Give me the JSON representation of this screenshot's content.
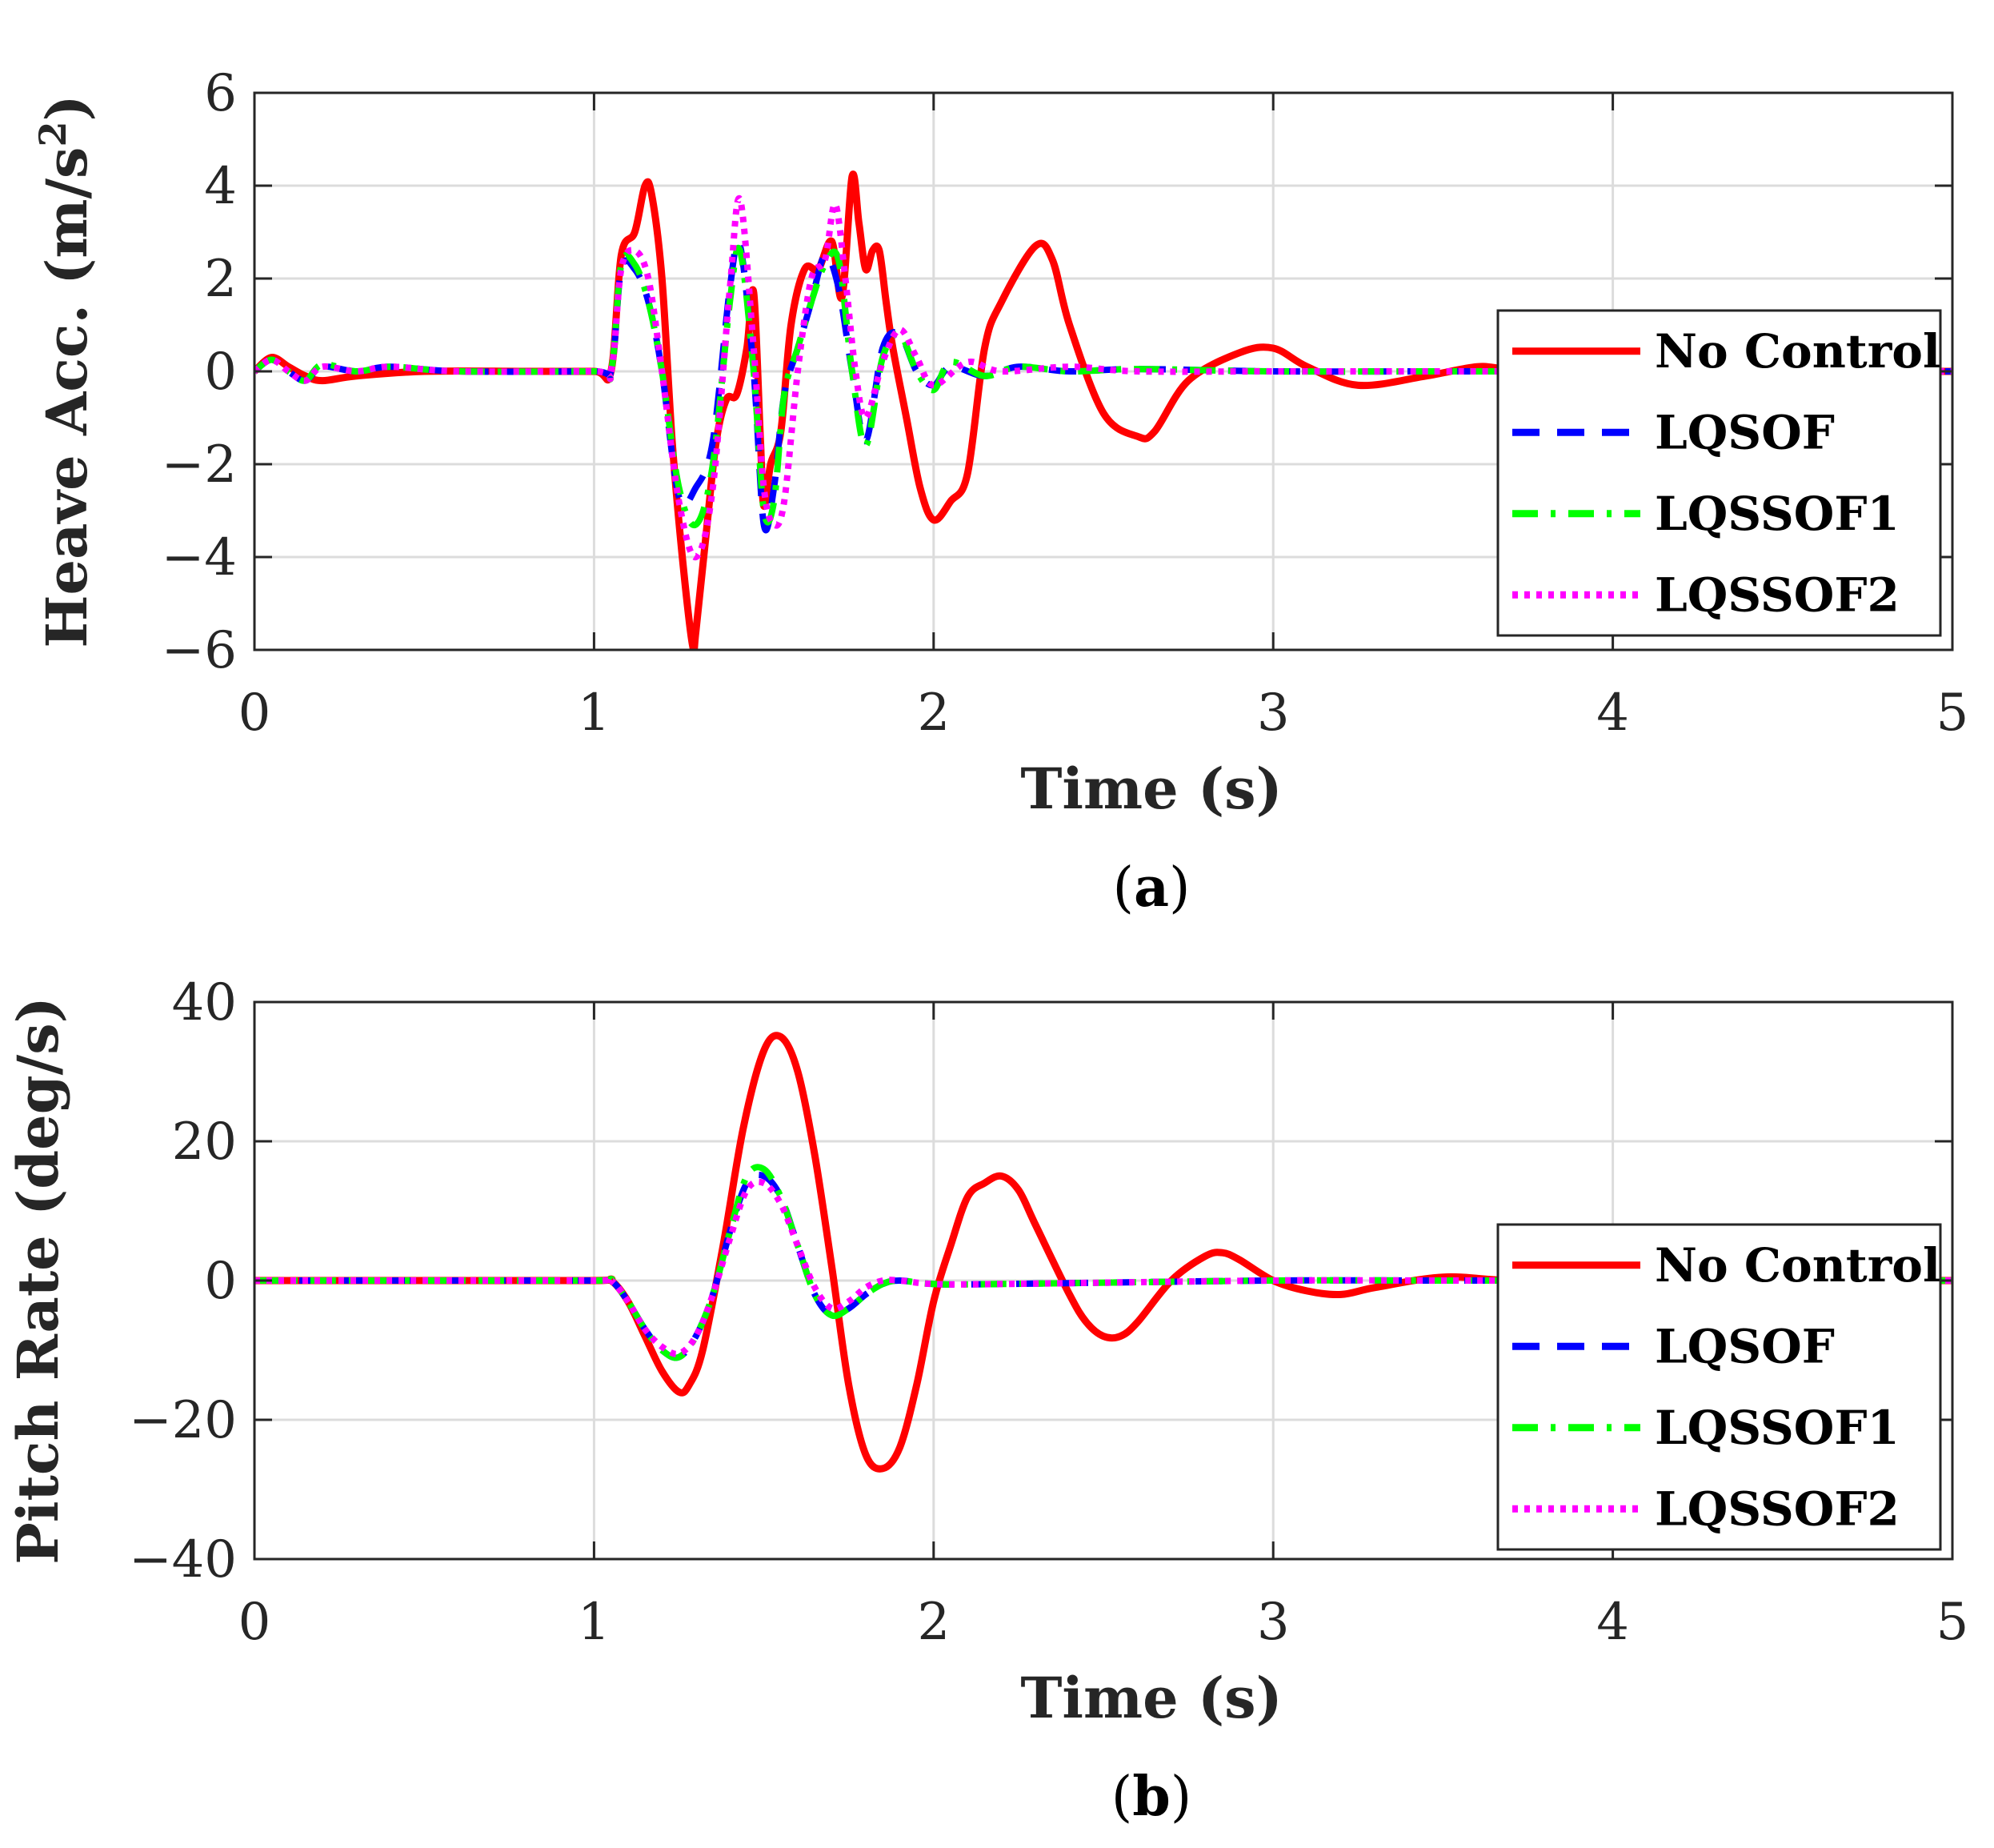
{
  "chart_data": [
    {
      "type": "line",
      "caption": {
        "open": "(",
        "letter": "a",
        "close": ")"
      },
      "xlabel": "Time (s)",
      "ylabel": "Heave Acc. (m/s",
      "ylabel_sup": "2",
      "ylabel_close": ")",
      "xlim": [
        0,
        5
      ],
      "ylim": [
        -6,
        6
      ],
      "xticks": [
        0,
        1,
        2,
        3,
        4,
        5
      ],
      "xtick_labels": [
        "0",
        "1",
        "2",
        "3",
        "4",
        "5"
      ],
      "yticks": [
        -6,
        -4,
        -2,
        0,
        2,
        4,
        6
      ],
      "ytick_labels": [
        "−6",
        "−4",
        "−2",
        "0",
        "2",
        "4",
        "6"
      ],
      "grid": true,
      "legend_position": "right",
      "series": [
        {
          "name": "No Control",
          "color": "#ff0000",
          "style": "solid",
          "x": [
            0,
            0.05,
            0.1,
            0.15,
            0.2,
            0.3,
            0.5,
            0.8,
            1.0,
            1.05,
            1.08,
            1.12,
            1.15,
            1.17,
            1.2,
            1.23,
            1.26,
            1.29,
            1.3,
            1.33,
            1.36,
            1.39,
            1.42,
            1.45,
            1.47,
            1.49,
            1.5,
            1.52,
            1.55,
            1.58,
            1.62,
            1.66,
            1.7,
            1.73,
            1.76,
            1.78,
            1.8,
            1.82,
            1.84,
            1.86,
            1.88,
            1.92,
            1.96,
            2.0,
            2.05,
            2.1,
            2.15,
            2.2,
            2.3,
            2.35,
            2.4,
            2.5,
            2.6,
            2.65,
            2.75,
            2.9,
            3.0,
            3.1,
            3.25,
            3.45,
            3.6,
            3.7,
            4.0,
            4.5,
            5.0
          ],
          "y": [
            0,
            0.3,
            0.1,
            -0.1,
            -0.2,
            -0.1,
            0,
            0,
            0,
            0,
            2.5,
            3.0,
            4.0,
            3.8,
            2.0,
            -1.5,
            -4.0,
            -5.9,
            -5.6,
            -3.5,
            -1.5,
            -0.6,
            -0.5,
            0.5,
            1.7,
            -1.5,
            -2.9,
            -2.0,
            -1.3,
            1.0,
            2.2,
            2.2,
            2.8,
            1.6,
            4.2,
            3.2,
            2.2,
            2.6,
            2.6,
            1.5,
            0.5,
            -1.0,
            -2.5,
            -3.2,
            -2.8,
            -2.2,
            0.5,
            1.5,
            2.7,
            2.4,
            1.0,
            -0.9,
            -1.4,
            -1.3,
            -0.2,
            0.4,
            0.5,
            0.1,
            -0.3,
            -0.1,
            0.1,
            0.05,
            0,
            0,
            0
          ]
        },
        {
          "name": "LQSOF",
          "color": "#0000ff",
          "style": "dashed",
          "x": [
            0,
            0.05,
            0.1,
            0.15,
            0.2,
            0.3,
            0.4,
            0.6,
            1.0,
            1.05,
            1.08,
            1.12,
            1.16,
            1.2,
            1.25,
            1.3,
            1.35,
            1.4,
            1.43,
            1.47,
            1.5,
            1.53,
            1.56,
            1.6,
            1.64,
            1.68,
            1.72,
            1.76,
            1.8,
            1.85,
            1.9,
            1.95,
            2.0,
            2.05,
            2.15,
            2.25,
            2.4,
            2.6,
            3.0,
            3.5,
            4.0,
            5.0
          ],
          "y": [
            0,
            0.25,
            0,
            -0.2,
            0.1,
            0,
            0.1,
            0,
            0,
            0,
            2.2,
            2.2,
            1.5,
            0,
            -2.7,
            -2.5,
            -1.5,
            1.8,
            2.7,
            0,
            -3.3,
            -2.5,
            -0.5,
            0.5,
            1.5,
            2.5,
            1.8,
            0,
            -1.5,
            0.5,
            0.8,
            0,
            -0.3,
            0.1,
            -0.1,
            0.1,
            0,
            0.05,
            0,
            0,
            0,
            0
          ]
        },
        {
          "name": "LQSSOF1",
          "color": "#00ff00",
          "style": "dashdot",
          "x": [
            0,
            0.05,
            0.1,
            0.15,
            0.2,
            0.3,
            0.4,
            0.6,
            1.0,
            1.05,
            1.08,
            1.12,
            1.16,
            1.2,
            1.25,
            1.3,
            1.35,
            1.4,
            1.43,
            1.47,
            1.5,
            1.53,
            1.56,
            1.6,
            1.64,
            1.68,
            1.72,
            1.76,
            1.8,
            1.85,
            1.9,
            1.95,
            2.0,
            2.05,
            2.15,
            2.25,
            2.4,
            2.6,
            3.0,
            3.5,
            4.0,
            5.0
          ],
          "y": [
            0,
            0.25,
            0,
            -0.2,
            0.15,
            0,
            0.1,
            0,
            0,
            0,
            2.3,
            2.3,
            1.5,
            0,
            -2.5,
            -3.3,
            -2.0,
            1.5,
            2.6,
            0,
            -3.0,
            -2.8,
            -0.5,
            0.5,
            1.5,
            2.3,
            2.4,
            0,
            -1.6,
            0.3,
            0.8,
            0,
            -0.4,
            0.2,
            -0.1,
            0.1,
            0,
            0.05,
            0,
            0,
            0,
            0
          ]
        },
        {
          "name": "LQSSOF2",
          "color": "#ff00ff",
          "style": "dotted",
          "x": [
            0,
            0.05,
            0.1,
            0.15,
            0.2,
            0.3,
            0.4,
            0.6,
            1.0,
            1.05,
            1.08,
            1.12,
            1.16,
            1.2,
            1.25,
            1.3,
            1.35,
            1.4,
            1.43,
            1.47,
            1.5,
            1.53,
            1.56,
            1.6,
            1.64,
            1.68,
            1.71,
            1.74,
            1.77,
            1.8,
            1.85,
            1.9,
            1.95,
            2.0,
            2.1,
            2.2,
            2.4,
            2.6,
            3.0,
            3.5,
            4.0,
            5.0
          ],
          "y": [
            0,
            0.25,
            0,
            -0.2,
            0.1,
            0,
            0.1,
            0,
            0,
            0,
            2.2,
            2.6,
            2.0,
            0,
            -2.8,
            -4.0,
            -2.5,
            1.8,
            3.7,
            0.5,
            -2.5,
            -3.3,
            -2.8,
            0,
            2.0,
            2.4,
            3.6,
            2.0,
            0,
            -1.0,
            0.2,
            0.9,
            0.3,
            -0.3,
            0.2,
            0,
            0.1,
            0,
            0,
            0,
            0,
            0
          ]
        }
      ]
    },
    {
      "type": "line",
      "caption": {
        "open": "(",
        "letter": "b",
        "close": ")"
      },
      "xlabel": "Time (s)",
      "ylabel": "Pitch Rate (deg/s)",
      "xlim": [
        0,
        5
      ],
      "ylim": [
        -40,
        40
      ],
      "xticks": [
        0,
        1,
        2,
        3,
        4,
        5
      ],
      "xtick_labels": [
        "0",
        "1",
        "2",
        "3",
        "4",
        "5"
      ],
      "yticks": [
        -40,
        -20,
        0,
        20,
        40
      ],
      "ytick_labels": [
        "−40",
        "−20",
        "0",
        "20",
        "40"
      ],
      "grid": true,
      "legend_position": "right",
      "series": [
        {
          "name": "No Control",
          "color": "#ff0000",
          "style": "solid",
          "x": [
            0,
            0.5,
            1.0,
            1.05,
            1.1,
            1.15,
            1.2,
            1.25,
            1.28,
            1.32,
            1.38,
            1.44,
            1.5,
            1.55,
            1.6,
            1.65,
            1.7,
            1.75,
            1.8,
            1.85,
            1.9,
            1.95,
            2.0,
            2.05,
            2.1,
            2.15,
            2.2,
            2.25,
            2.3,
            2.4,
            2.45,
            2.5,
            2.55,
            2.6,
            2.7,
            2.8,
            2.85,
            2.9,
            3.0,
            3.1,
            3.2,
            3.3,
            3.5,
            3.7,
            4.0,
            4.5,
            5.0
          ],
          "y": [
            0,
            0,
            0,
            0,
            -3,
            -8,
            -13,
            -16,
            -15,
            -10,
            5,
            22,
            33,
            35,
            30,
            18,
            2,
            -15,
            -25,
            -27,
            -24,
            -15,
            -3,
            5,
            12,
            14,
            15,
            13,
            8,
            -2,
            -6,
            -8,
            -8,
            -6,
            0,
            3.5,
            4,
            3,
            0,
            -1.5,
            -2,
            -1,
            0.5,
            0,
            0,
            0,
            0
          ]
        },
        {
          "name": "LQSOF",
          "color": "#0000ff",
          "style": "dashed",
          "x": [
            0,
            0.5,
            1.0,
            1.05,
            1.1,
            1.15,
            1.2,
            1.25,
            1.3,
            1.35,
            1.4,
            1.45,
            1.5,
            1.55,
            1.6,
            1.65,
            1.7,
            1.75,
            1.8,
            1.85,
            1.9,
            2.0,
            2.2,
            3.0,
            3.5,
            4.0,
            5.0
          ],
          "y": [
            0,
            0,
            0,
            0,
            -3,
            -7,
            -10,
            -11,
            -8,
            -2,
            7,
            14,
            15,
            12,
            5,
            -2,
            -5,
            -4,
            -2,
            -0.5,
            0,
            -0.5,
            -0.5,
            0,
            0,
            0,
            0
          ]
        },
        {
          "name": "LQSSOF1",
          "color": "#00ff00",
          "style": "dashdot",
          "x": [
            0,
            0.5,
            1.0,
            1.05,
            1.1,
            1.15,
            1.2,
            1.25,
            1.3,
            1.35,
            1.4,
            1.45,
            1.5,
            1.55,
            1.6,
            1.65,
            1.7,
            1.75,
            1.8,
            1.85,
            1.9,
            2.0,
            2.2,
            3.0,
            3.5,
            4.0,
            5.0
          ],
          "y": [
            0,
            0,
            0,
            0,
            -3,
            -7,
            -10,
            -11,
            -8,
            -2,
            7,
            15,
            16,
            12,
            5,
            -2,
            -5,
            -4,
            -2,
            -0.5,
            0,
            -0.5,
            -0.5,
            0,
            0,
            0,
            0
          ]
        },
        {
          "name": "LQSSOF2",
          "color": "#ff00ff",
          "style": "dotted",
          "x": [
            0,
            0.5,
            1.0,
            1.05,
            1.1,
            1.15,
            1.2,
            1.25,
            1.3,
            1.35,
            1.4,
            1.45,
            1.5,
            1.55,
            1.6,
            1.65,
            1.7,
            1.75,
            1.8,
            1.85,
            1.9,
            2.0,
            2.2,
            3.0,
            3.5,
            4.0,
            5.0
          ],
          "y": [
            0,
            0,
            0,
            0,
            -3,
            -7,
            -9.5,
            -10.5,
            -8,
            -2,
            6,
            13,
            14,
            11,
            5,
            -1,
            -4,
            -3,
            -1,
            0,
            0,
            -0.5,
            -0.5,
            0,
            0,
            0,
            0
          ]
        }
      ]
    }
  ]
}
